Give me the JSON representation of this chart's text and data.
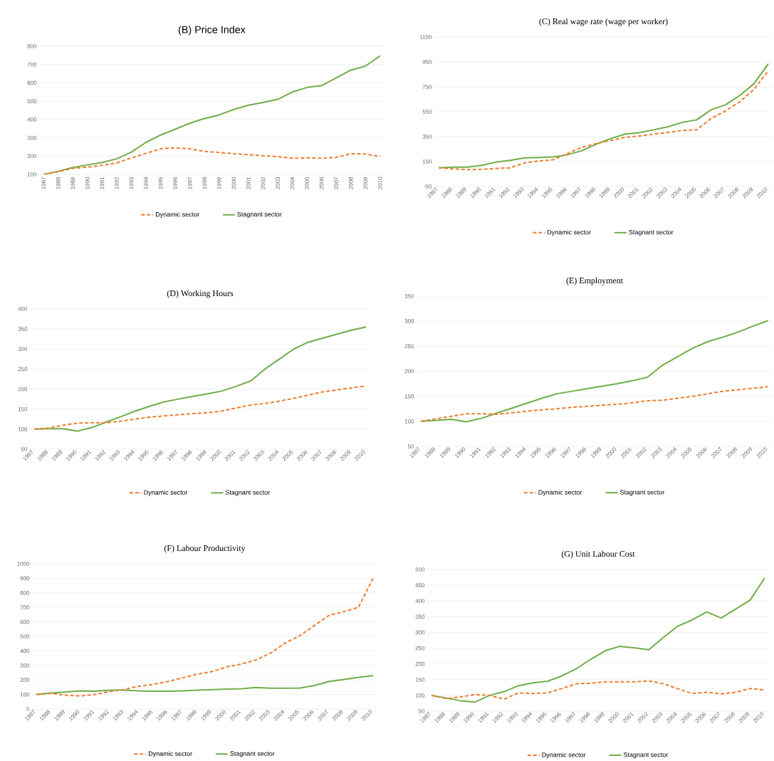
{
  "chart_data": [
    {
      "type": "line",
      "title": "(B) Price Index",
      "categories": [
        "1987",
        "1988",
        "1989",
        "1990",
        "1991",
        "1992",
        "1993",
        "1994",
        "1995",
        "1996",
        "1997",
        "1998",
        "1999",
        "2000",
        "2001",
        "2002",
        "2003",
        "2004",
        "2005",
        "2006",
        "2007",
        "2008",
        "2009",
        "2010"
      ],
      "series": [
        {
          "name": "Dynamic sector",
          "color": "#ed7d31",
          "line_style": "dashed",
          "values": [
            100,
            115,
            133,
            140,
            150,
            162,
            190,
            215,
            240,
            245,
            240,
            225,
            220,
            213,
            208,
            202,
            197,
            188,
            190,
            188,
            193,
            213,
            212,
            197
          ]
        },
        {
          "name": "Stagnant sector",
          "color": "#70ad47",
          "line_style": "solid",
          "values": [
            100,
            117,
            138,
            152,
            165,
            185,
            222,
            275,
            315,
            347,
            380,
            405,
            425,
            455,
            478,
            493,
            510,
            550,
            575,
            585,
            627,
            670,
            692,
            748
          ]
        }
      ],
      "ylim": [
        100,
        800
      ],
      "yticks": [
        100,
        200,
        300,
        400,
        500,
        600,
        700,
        800
      ],
      "grid": "y",
      "legend": "bottom"
    },
    {
      "type": "line",
      "title": "(C) Real wage rate (wage per worker)",
      "categories": [
        "1987",
        "1988",
        "1989",
        "1990",
        "1991",
        "1992",
        "1993",
        "1994",
        "1995",
        "1996",
        "1997",
        "1998",
        "1999",
        "2000",
        "2001",
        "2002",
        "2003",
        "2004",
        "2005",
        "2006",
        "2007",
        "2008",
        "2009",
        "2010"
      ],
      "series": [
        {
          "name": "Dynamic sector",
          "color": "#ed7d31",
          "line_style": "dashed",
          "values": [
            100,
            92,
            85,
            88,
            95,
            100,
            140,
            155,
            165,
            215,
            265,
            295,
            320,
            345,
            355,
            370,
            385,
            400,
            405,
            495,
            555,
            630,
            730,
            880
          ]
        },
        {
          "name": "Stagnant sector",
          "color": "#70ad47",
          "line_style": "solid",
          "values": [
            100,
            105,
            105,
            120,
            145,
            160,
            180,
            183,
            187,
            205,
            238,
            290,
            335,
            370,
            383,
            405,
            430,
            465,
            485,
            565,
            605,
            680,
            775,
            935
          ]
        }
      ],
      "ylim": [
        -50,
        1150
      ],
      "yticks": [
        -50,
        150,
        350,
        550,
        750,
        950,
        1150
      ],
      "grid": "y",
      "legend": "bottom"
    },
    {
      "type": "line",
      "title": "(D) Working Hours",
      "categories": [
        "1987",
        "1988",
        "1989",
        "1990",
        "1991",
        "1992",
        "1993",
        "1994",
        "1995",
        "1996",
        "1997",
        "1998",
        "1999",
        "2000",
        "2001",
        "2002",
        "2003",
        "2004",
        "2005",
        "2006",
        "2007",
        "2008",
        "2009",
        "2010"
      ],
      "series": [
        {
          "name": "Dynamic sector",
          "color": "#ed7d31",
          "line_style": "dashed",
          "values": [
            100,
            103,
            110,
            115,
            116,
            116,
            120,
            125,
            130,
            133,
            136,
            139,
            141,
            145,
            153,
            160,
            164,
            170,
            177,
            185,
            193,
            198,
            203,
            208
          ]
        },
        {
          "name": "Stagnant sector",
          "color": "#70ad47",
          "line_style": "solid",
          "values": [
            100,
            101,
            101,
            95,
            104,
            118,
            131,
            145,
            157,
            168,
            175,
            182,
            188,
            195,
            207,
            220,
            250,
            275,
            300,
            317,
            327,
            337,
            347,
            355
          ]
        }
      ],
      "ylim": [
        50,
        400
      ],
      "yticks": [
        50,
        100,
        150,
        200,
        250,
        300,
        350,
        400
      ],
      "grid": "y",
      "legend": "bottom"
    },
    {
      "type": "line",
      "title": "(E) Employment",
      "categories": [
        "1987",
        "1988",
        "1989",
        "1990",
        "1991",
        "1992",
        "1993",
        "1994",
        "1995",
        "1996",
        "1997",
        "1998",
        "1999",
        "2000",
        "2001",
        "2002",
        "2003",
        "2004",
        "2005",
        "2006",
        "2007",
        "2008",
        "2009",
        "2010"
      ],
      "series": [
        {
          "name": "Dynamic sector",
          "color": "#ed7d31",
          "line_style": "dashed",
          "values": [
            100,
            105,
            110,
            115,
            115,
            114,
            117,
            120,
            123,
            125,
            128,
            130,
            132,
            134,
            137,
            141,
            142,
            146,
            150,
            155,
            160,
            163,
            166,
            169
          ]
        },
        {
          "name": "Stagnant sector",
          "color": "#70ad47",
          "line_style": "solid",
          "values": [
            100,
            102,
            104,
            99,
            106,
            116,
            126,
            136,
            146,
            155,
            160,
            165,
            170,
            175,
            181,
            188,
            212,
            229,
            246,
            259,
            268,
            278,
            290,
            301
          ]
        }
      ],
      "ylim": [
        50,
        350
      ],
      "yticks": [
        50,
        100,
        150,
        200,
        250,
        300,
        350
      ],
      "grid": "y",
      "legend": "bottom"
    },
    {
      "type": "line",
      "title": "(F) Labour Productivity",
      "categories": [
        "1987",
        "1988",
        "1989",
        "1990",
        "1991",
        "1992",
        "1993",
        "1994",
        "1995",
        "1996",
        "1997",
        "1998",
        "1999",
        "2000",
        "2001",
        "2002",
        "2003",
        "2004",
        "2005",
        "2006",
        "2007",
        "2008",
        "2009",
        "2010"
      ],
      "series": [
        {
          "name": "Dynamic sector",
          "color": "#ed7d31",
          "line_style": "dashed",
          "values": [
            100,
            108,
            95,
            90,
            100,
            120,
            135,
            157,
            170,
            190,
            215,
            240,
            258,
            290,
            310,
            338,
            385,
            455,
            505,
            575,
            645,
            670,
            700,
            900
          ]
        },
        {
          "name": "Stagnant sector",
          "color": "#70ad47",
          "line_style": "solid",
          "values": [
            100,
            110,
            117,
            125,
            122,
            130,
            130,
            125,
            122,
            122,
            125,
            130,
            133,
            137,
            140,
            148,
            143,
            143,
            145,
            162,
            190,
            203,
            218,
            230
          ]
        }
      ],
      "ylim": [
        0,
        1000
      ],
      "yticks": [
        0,
        100,
        200,
        300,
        400,
        500,
        600,
        700,
        800,
        900,
        1000
      ],
      "grid": "y",
      "legend": "bottom"
    },
    {
      "type": "line",
      "title": "(G) Unit Labour Cost",
      "categories": [
        "1987",
        "1988",
        "1989",
        "1990",
        "1991",
        "1992",
        "1993",
        "1994",
        "1995",
        "1996",
        "1997",
        "1998",
        "1999",
        "2000",
        "2001",
        "2002",
        "2003",
        "2004",
        "2005",
        "2006",
        "2007",
        "2008",
        "2009",
        "2010"
      ],
      "series": [
        {
          "name": "Dynamic sector",
          "color": "#ed7d31",
          "line_style": "dashed",
          "values": [
            100,
            90,
            95,
            103,
            100,
            88,
            108,
            106,
            108,
            122,
            137,
            139,
            143,
            143,
            143,
            146,
            137,
            121,
            106,
            110,
            105,
            110,
            122,
            117
          ]
        },
        {
          "name": "Stagnant sector",
          "color": "#70ad47",
          "line_style": "solid",
          "values": [
            100,
            92,
            83,
            79,
            100,
            112,
            131,
            140,
            145,
            162,
            185,
            215,
            242,
            256,
            251,
            245,
            284,
            320,
            340,
            365,
            346,
            374,
            403,
            473
          ]
        }
      ],
      "ylim": [
        50,
        500
      ],
      "yticks": [
        50,
        100,
        150,
        200,
        250,
        300,
        350,
        400,
        450,
        500
      ],
      "grid": "y",
      "legend": "bottom"
    }
  ]
}
